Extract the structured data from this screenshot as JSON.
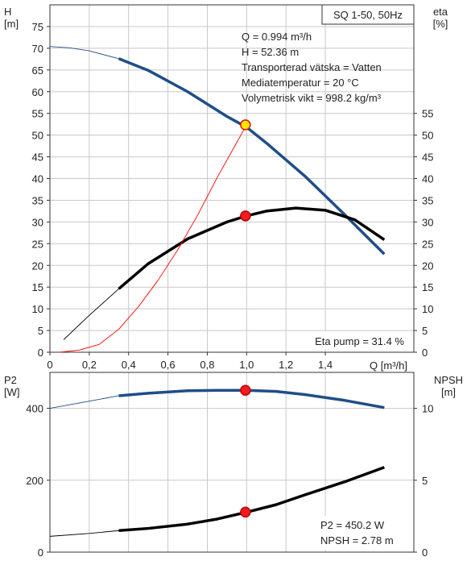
{
  "chart_data": [
    {
      "type": "line",
      "title": "SQ 1-50, 50Hz",
      "xlabel": "Q [m³/h]",
      "xlim": [
        0,
        1.85
      ],
      "x_ticks": [
        "0",
        "0,2",
        "0,4",
        "0,6",
        "0,8",
        "1,0",
        "1,2",
        "1,4"
      ],
      "ylabel_left": [
        "H",
        "[m]"
      ],
      "ylim_left": [
        0,
        80
      ],
      "y_ticks_left": [
        "0",
        "5",
        "10",
        "15",
        "20",
        "25",
        "30",
        "35",
        "40",
        "45",
        "50",
        "55",
        "60",
        "65",
        "70",
        "75"
      ],
      "ylabel_right": [
        "eta",
        "[%]"
      ],
      "ylim_right": [
        0,
        80
      ],
      "y_ticks_right": [
        "0",
        "5",
        "10",
        "15",
        "20",
        "25",
        "30",
        "35",
        "40",
        "45",
        "50",
        "55"
      ],
      "grid": true,
      "info_lines": [
        "Q = 0.994 m³/h",
        "H = 52.36 m",
        "Transporterad vätska = Vatten",
        "Mediatemperatur = 20 °C",
        "Volymetrisk vikt = 998.2 kg/m³"
      ],
      "eta_label": "Eta pump = 31.4 %",
      "series": [
        {
          "axis": "left",
          "color": "#1f4e87",
          "x": [
            0,
            0.1,
            0.2,
            0.35,
            0.5,
            0.7,
            0.9,
            1.0,
            1.1,
            1.3,
            1.5,
            1.7
          ],
          "y": [
            70.4,
            70.1,
            69.4,
            67.6,
            64.9,
            60.0,
            54.3,
            51.8,
            48.2,
            40.4,
            31.6,
            22.6
          ],
          "operating_range_from": 0.35
        },
        {
          "axis": "right",
          "color": "#000000",
          "x": [
            0.07,
            0.2,
            0.35,
            0.5,
            0.7,
            0.9,
            1.0,
            1.1,
            1.25,
            1.4,
            1.55,
            1.7
          ],
          "y": [
            2.9,
            8.5,
            14.6,
            20.4,
            26.1,
            30.0,
            31.4,
            32.5,
            33.2,
            32.7,
            30.5,
            25.9
          ],
          "operating_range_from": 0.35
        },
        {
          "axis": "left",
          "color": "#ff0000",
          "x": [
            0.05,
            0.15,
            0.25,
            0.35,
            0.45,
            0.55,
            0.65,
            0.75,
            0.85,
            0.94,
            1.0
          ],
          "y": [
            0,
            0.5,
            1.8,
            5.3,
            10.5,
            16.6,
            23.6,
            31.5,
            40.2,
            47.5,
            52.4
          ]
        }
      ],
      "markers": [
        {
          "axis": "left",
          "x": 0.994,
          "y": 52.36,
          "fill": "#ffe800",
          "stroke": "#e01010"
        },
        {
          "axis": "right",
          "x": 0.994,
          "y": 31.4,
          "fill": "#ef1d1d",
          "stroke": "#c00000"
        }
      ]
    },
    {
      "type": "line",
      "xlim": [
        0,
        1.85
      ],
      "ylabel_left": [
        "P2",
        "[W]"
      ],
      "ylim_left": [
        0,
        500
      ],
      "y_ticks_left": [
        "0",
        "200",
        "400"
      ],
      "ylabel_right": [
        "NPSH",
        "[m]"
      ],
      "ylim_right": [
        0,
        12.5
      ],
      "y_ticks_right": [
        "0",
        "5",
        "10"
      ],
      "grid": true,
      "info_lines": [
        "P2 = 450.2 W",
        "NPSH = 2.78 m"
      ],
      "series": [
        {
          "axis": "left",
          "color": "#1f4e87",
          "x": [
            0,
            0.2,
            0.35,
            0.5,
            0.7,
            0.85,
            1.0,
            1.15,
            1.3,
            1.5,
            1.7
          ],
          "y": [
            400,
            420,
            435,
            442,
            449,
            450,
            450,
            447,
            438,
            422,
            402
          ],
          "operating_range_from": 0.35
        },
        {
          "axis": "right",
          "color": "#000000",
          "x": [
            0,
            0.2,
            0.35,
            0.5,
            0.7,
            0.85,
            1.0,
            1.15,
            1.3,
            1.5,
            1.7
          ],
          "y": [
            1.1,
            1.3,
            1.5,
            1.65,
            1.95,
            2.3,
            2.78,
            3.3,
            4.0,
            4.9,
            5.9
          ],
          "operating_range_from": 0.35
        }
      ],
      "markers": [
        {
          "axis": "left",
          "x": 0.994,
          "y": 450.2,
          "fill": "#ef1d1d",
          "stroke": "#c00000"
        },
        {
          "axis": "right",
          "x": 0.994,
          "y": 2.78,
          "fill": "#ef1d1d",
          "stroke": "#c00000"
        }
      ]
    }
  ]
}
